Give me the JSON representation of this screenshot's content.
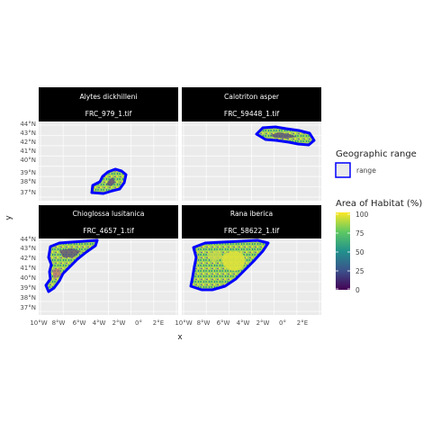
{
  "facets": [
    {
      "species": "Alytes dickhilleni",
      "file": "FRC_979_1.tif",
      "region": "southeast"
    },
    {
      "species": "Calotriton asper",
      "file": "FRC_59448_1.tif",
      "region": "pyrenees"
    },
    {
      "species": "Chioglossa lusitanica",
      "file": "FRC_4657_1.tif",
      "region": "northwest"
    },
    {
      "species": "Rana iberica",
      "file": "FRC_58622_1.tif",
      "region": "west"
    }
  ],
  "axes": {
    "x_label": "x",
    "y_label": "y",
    "x_ticks": [
      "10°W",
      "8°W",
      "6°W",
      "4°W",
      "2°W",
      "0°",
      "2°E"
    ],
    "y_ticks": [
      "37°N",
      "38°N",
      "39°N",
      "40°N",
      "41°N",
      "42°N",
      "43°N",
      "44°N"
    ]
  },
  "legend": {
    "range_title": "Geographic range",
    "range_label": "range",
    "range_color": "#0000ff",
    "habitat_title": "Area of Habitat (%)",
    "habitat_ticks": [
      "100",
      "75",
      "50",
      "25",
      "0"
    ],
    "colormap": [
      "#440154",
      "#3b528b",
      "#21918c",
      "#5ec962",
      "#fde725"
    ]
  },
  "colors": {
    "panel_bg": "#ebebeb",
    "grid": "#ffffff",
    "strip_bg": "#000000"
  }
}
